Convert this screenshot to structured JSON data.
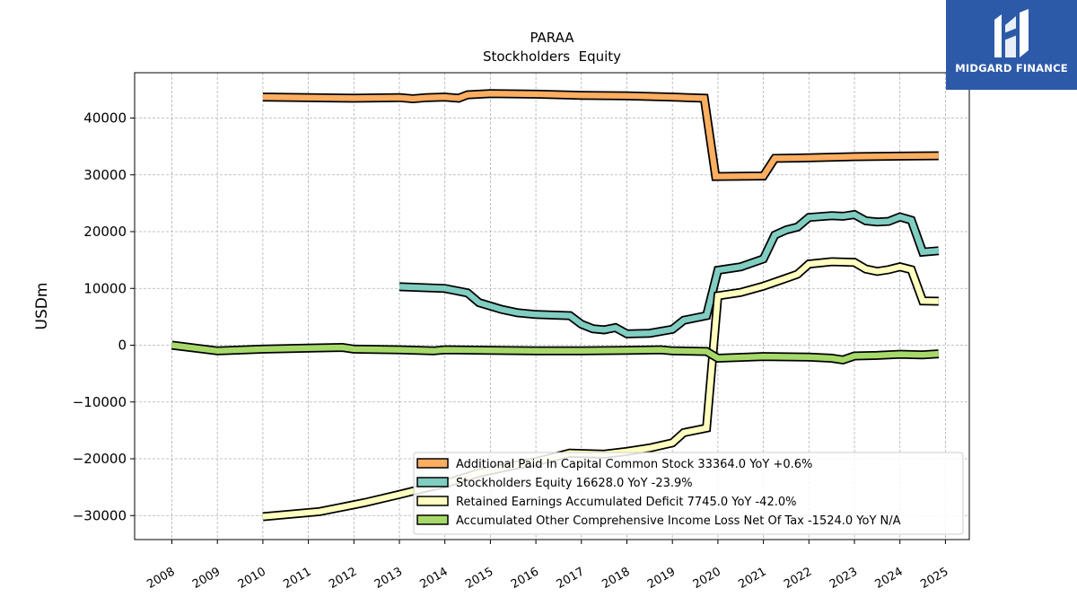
{
  "brand": {
    "name": "MIDGARD FINANCE",
    "bg_color": "#2d5aa8",
    "mark": "midgard-logo-icon"
  },
  "chart_data": {
    "type": "line",
    "title": "PARAA",
    "subtitle": "Stockholders  Equity",
    "xlabel": "",
    "ylabel": "USDm",
    "xlim": [
      2007.5,
      2025.3
    ],
    "ylim": [
      -34000,
      48000
    ],
    "x_ticks": [
      "2008",
      "2009",
      "2010",
      "2011",
      "2012",
      "2013",
      "2014",
      "2015",
      "2016",
      "2017",
      "2018",
      "2019",
      "2020",
      "2021",
      "2022",
      "2023",
      "2024",
      "2025"
    ],
    "y_ticks": [
      {
        "value": 40000,
        "label": "40000"
      },
      {
        "value": 30000,
        "label": "30000"
      },
      {
        "value": 20000,
        "label": "20000"
      },
      {
        "value": 10000,
        "label": "10000"
      },
      {
        "value": 0,
        "label": "0"
      },
      {
        "value": -10000,
        "label": "−10000"
      },
      {
        "value": -20000,
        "label": "−20000"
      },
      {
        "value": -30000,
        "label": "−30000"
      }
    ],
    "grid": true,
    "legend_position": "bottom-right",
    "series": [
      {
        "name": "Additional Paid In Capital Common Stock",
        "legend_label": "Additional Paid In Capital Common Stock  33364.0 YoY +0.6%",
        "color": "#fdae61",
        "points": [
          [
            2010.0,
            43700
          ],
          [
            2011.0,
            43600
          ],
          [
            2012.0,
            43500
          ],
          [
            2013.0,
            43600
          ],
          [
            2013.3,
            43400
          ],
          [
            2013.6,
            43600
          ],
          [
            2014.0,
            43700
          ],
          [
            2014.3,
            43500
          ],
          [
            2014.5,
            44100
          ],
          [
            2015.0,
            44300
          ],
          [
            2016.0,
            44200
          ],
          [
            2017.0,
            44000
          ],
          [
            2018.0,
            43900
          ],
          [
            2019.0,
            43700
          ],
          [
            2019.7,
            43500
          ],
          [
            2019.95,
            29700
          ],
          [
            2021.0,
            29800
          ],
          [
            2021.25,
            32900
          ],
          [
            2022.0,
            33000
          ],
          [
            2023.0,
            33200
          ],
          [
            2024.0,
            33300
          ],
          [
            2024.85,
            33364
          ]
        ]
      },
      {
        "name": "Stockholders Equity",
        "legend_label": "Stockholders Equity  16628.0 YoY -23.9%",
        "color": "#80cdc1",
        "points": [
          [
            2013.0,
            10300
          ],
          [
            2014.0,
            10000
          ],
          [
            2014.5,
            9200
          ],
          [
            2014.75,
            7500
          ],
          [
            2015.25,
            6300
          ],
          [
            2015.6,
            5700
          ],
          [
            2016.0,
            5400
          ],
          [
            2016.75,
            5200
          ],
          [
            2017.0,
            3700
          ],
          [
            2017.25,
            2900
          ],
          [
            2017.5,
            2700
          ],
          [
            2017.75,
            3100
          ],
          [
            2018.0,
            2000
          ],
          [
            2018.5,
            2100
          ],
          [
            2019.0,
            2800
          ],
          [
            2019.25,
            4400
          ],
          [
            2019.75,
            5200
          ],
          [
            2020.0,
            13200
          ],
          [
            2020.5,
            13800
          ],
          [
            2021.0,
            15200
          ],
          [
            2021.25,
            19400
          ],
          [
            2021.5,
            20300
          ],
          [
            2021.75,
            20800
          ],
          [
            2022.0,
            22500
          ],
          [
            2022.5,
            22800
          ],
          [
            2022.75,
            22700
          ],
          [
            2023.0,
            23000
          ],
          [
            2023.25,
            21900
          ],
          [
            2023.5,
            21700
          ],
          [
            2023.75,
            21800
          ],
          [
            2024.0,
            22600
          ],
          [
            2024.25,
            22000
          ],
          [
            2024.5,
            16400
          ],
          [
            2024.85,
            16628
          ]
        ]
      },
      {
        "name": "Retained Earnings Accumulated Deficit",
        "legend_label": "Retained Earnings Accumulated Deficit  7745.0 YoY -42.0%",
        "color": "#ffffbf",
        "points": [
          [
            2010.0,
            -30200
          ],
          [
            2011.25,
            -29300
          ],
          [
            2012.25,
            -27700
          ],
          [
            2013.0,
            -26300
          ],
          [
            2013.5,
            -25300
          ],
          [
            2014.0,
            -24400
          ],
          [
            2014.75,
            -22500
          ],
          [
            2015.5,
            -21200
          ],
          [
            2016.0,
            -20500
          ],
          [
            2016.75,
            -19000
          ],
          [
            2017.5,
            -19200
          ],
          [
            2018.0,
            -18700
          ],
          [
            2018.5,
            -18100
          ],
          [
            2019.0,
            -17200
          ],
          [
            2019.25,
            -15400
          ],
          [
            2019.75,
            -14600
          ],
          [
            2020.0,
            8700
          ],
          [
            2020.5,
            9300
          ],
          [
            2021.0,
            10400
          ],
          [
            2021.5,
            11800
          ],
          [
            2021.75,
            12500
          ],
          [
            2022.0,
            14300
          ],
          [
            2022.5,
            14700
          ],
          [
            2023.0,
            14600
          ],
          [
            2023.25,
            13400
          ],
          [
            2023.5,
            13000
          ],
          [
            2023.75,
            13300
          ],
          [
            2024.0,
            13800
          ],
          [
            2024.25,
            13300
          ],
          [
            2024.5,
            7800
          ],
          [
            2024.85,
            7745
          ]
        ]
      },
      {
        "name": "Accumulated Other Comprehensive Income Loss Net Of Tax",
        "legend_label": "Accumulated Other Comprehensive Income Loss Net Of Tax  -1524.0 YoY N/A",
        "color": "#a6d96a",
        "points": [
          [
            2008.0,
            0
          ],
          [
            2009.0,
            -1000
          ],
          [
            2010.0,
            -700
          ],
          [
            2011.0,
            -500
          ],
          [
            2011.75,
            -400
          ],
          [
            2012.0,
            -700
          ],
          [
            2013.0,
            -800
          ],
          [
            2013.75,
            -1000
          ],
          [
            2014.0,
            -800
          ],
          [
            2015.0,
            -900
          ],
          [
            2016.0,
            -1000
          ],
          [
            2017.0,
            -1000
          ],
          [
            2018.0,
            -900
          ],
          [
            2018.75,
            -800
          ],
          [
            2019.0,
            -1000
          ],
          [
            2019.75,
            -1100
          ],
          [
            2020.0,
            -2300
          ],
          [
            2021.0,
            -2000
          ],
          [
            2022.0,
            -2100
          ],
          [
            2022.5,
            -2300
          ],
          [
            2022.75,
            -2600
          ],
          [
            2023.0,
            -1900
          ],
          [
            2023.5,
            -1800
          ],
          [
            2024.0,
            -1600
          ],
          [
            2024.5,
            -1700
          ],
          [
            2024.85,
            -1524
          ]
        ]
      }
    ]
  }
}
